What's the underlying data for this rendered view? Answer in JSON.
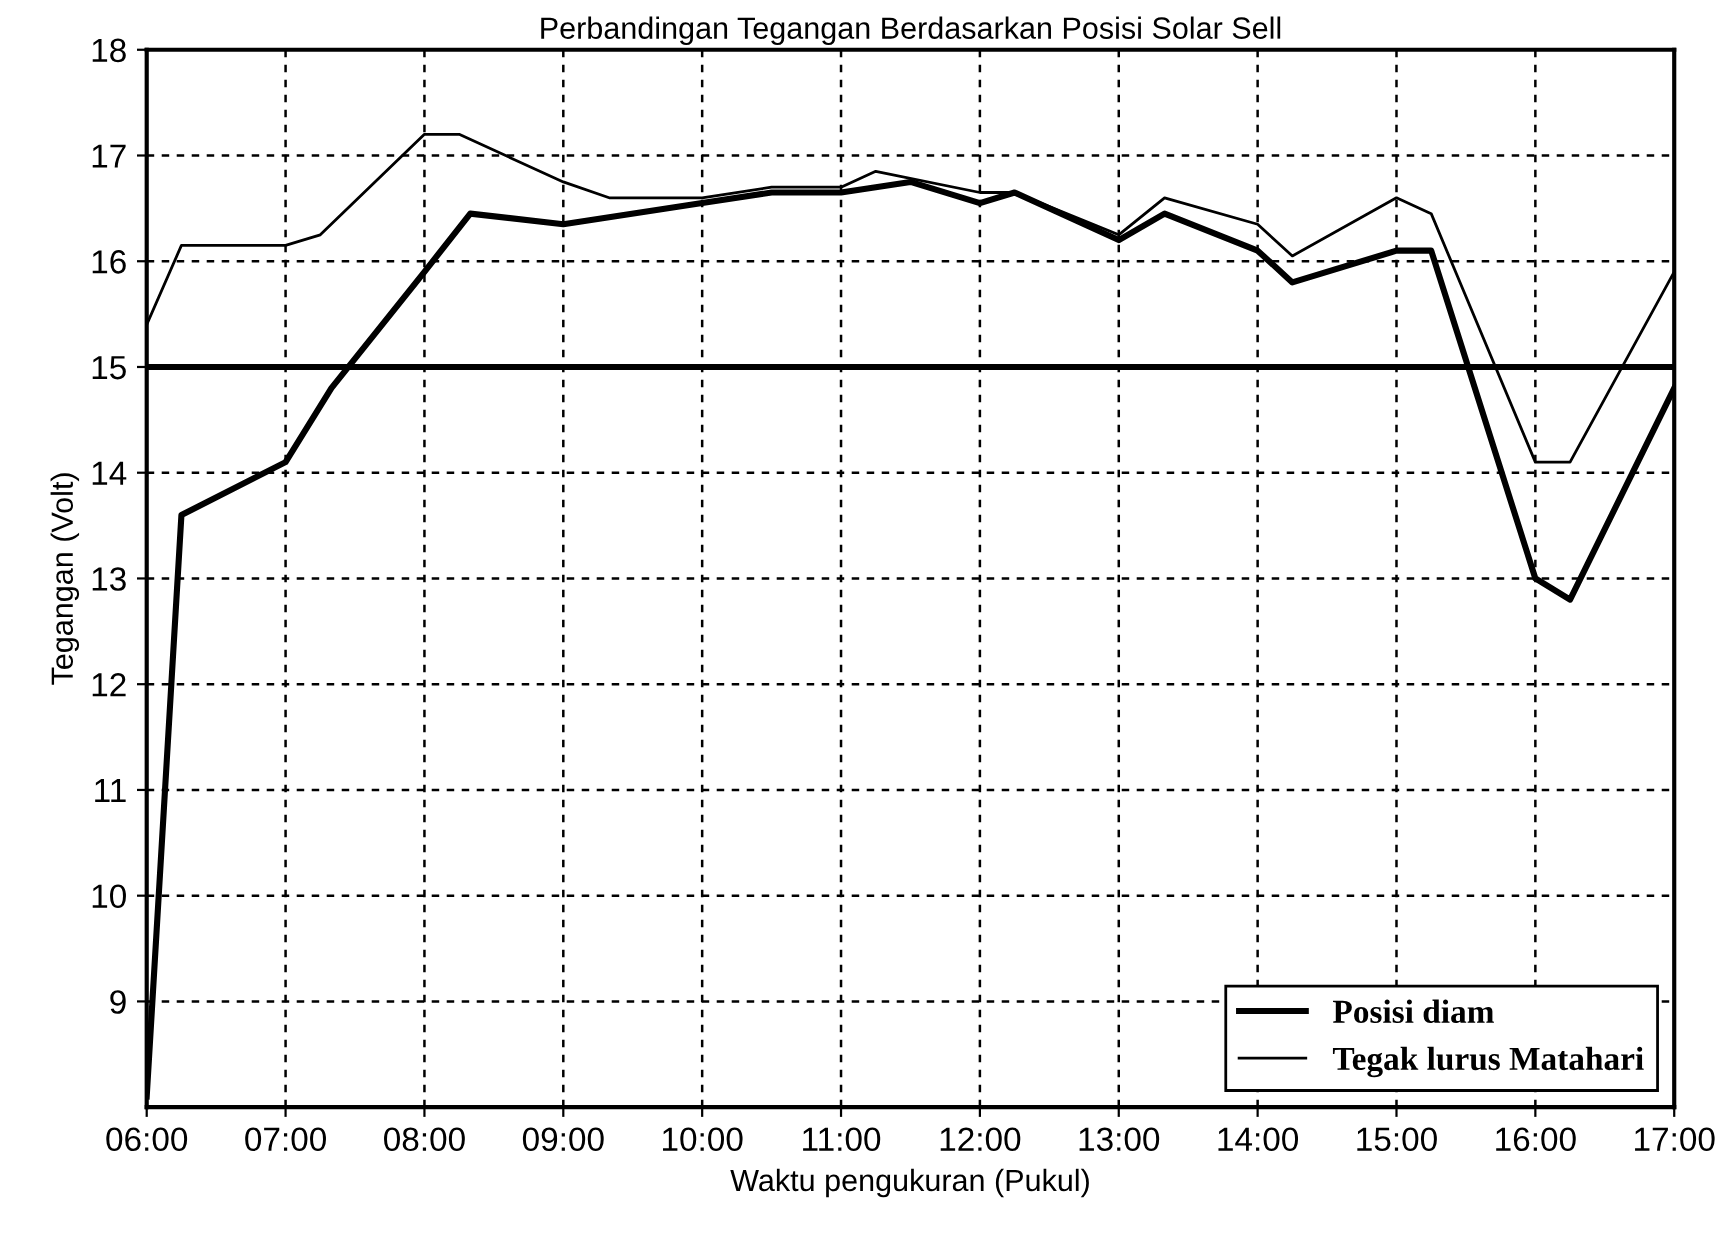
{
  "chart_data": {
    "type": "line",
    "title": "Perbandingan Tegangan Berdasarkan Posisi Solar Sell",
    "xlabel": "Waktu pengukuran (Pukul)",
    "ylabel": "Tegangan (Volt)",
    "xlim": [
      6,
      17
    ],
    "ylim": [
      8,
      18
    ],
    "xticks": [
      {
        "value": 6,
        "label": "06:00"
      },
      {
        "value": 7,
        "label": "07:00"
      },
      {
        "value": 8,
        "label": "08:00"
      },
      {
        "value": 9,
        "label": "09:00"
      },
      {
        "value": 10,
        "label": "10:00"
      },
      {
        "value": 11,
        "label": "11:00"
      },
      {
        "value": 12,
        "label": "12:00"
      },
      {
        "value": 13,
        "label": "13:00"
      },
      {
        "value": 14,
        "label": "14:00"
      },
      {
        "value": 15,
        "label": "15:00"
      },
      {
        "value": 16,
        "label": "16:00"
      },
      {
        "value": 17,
        "label": "17:00"
      }
    ],
    "yticks": [
      9,
      10,
      11,
      12,
      13,
      14,
      15,
      16,
      17,
      18
    ],
    "grid": true,
    "legend": "bottom right",
    "line_style": "solid",
    "ref_lines": [
      {
        "axis": "y",
        "value": 15,
        "color": "#000000"
      }
    ],
    "series": [
      {
        "name": "Posisi diam",
        "color": "#000000",
        "x": [
          6,
          6.25,
          7,
          7.33,
          8,
          8.33,
          9,
          10,
          10.5,
          11,
          11.5,
          12,
          12.25,
          13,
          13.33,
          14,
          14.25,
          15,
          15.25,
          16,
          16.25,
          17
        ],
        "values": [
          8.1,
          13.6,
          14.1,
          14.8,
          15.9,
          16.45,
          16.35,
          16.55,
          16.65,
          16.65,
          16.75,
          16.55,
          16.65,
          16.2,
          16.45,
          16.1,
          15.8,
          16.1,
          16.1,
          13.0,
          12.8,
          14.8
        ]
      },
      {
        "name": "Tegak lurus Matahari",
        "color": "#000000",
        "x": [
          6,
          6.25,
          7,
          7.25,
          8,
          8.25,
          9,
          9.33,
          10,
          10.5,
          11,
          11.25,
          12,
          12.25,
          13,
          13.33,
          14,
          14.25,
          15,
          15.25,
          16,
          16.25,
          17
        ],
        "values": [
          15.4,
          16.15,
          16.15,
          16.25,
          17.2,
          17.2,
          16.75,
          16.6,
          16.6,
          16.7,
          16.7,
          16.85,
          16.65,
          16.65,
          16.25,
          16.6,
          16.35,
          16.05,
          16.6,
          16.45,
          14.1,
          14.1,
          15.9
        ]
      }
    ]
  }
}
